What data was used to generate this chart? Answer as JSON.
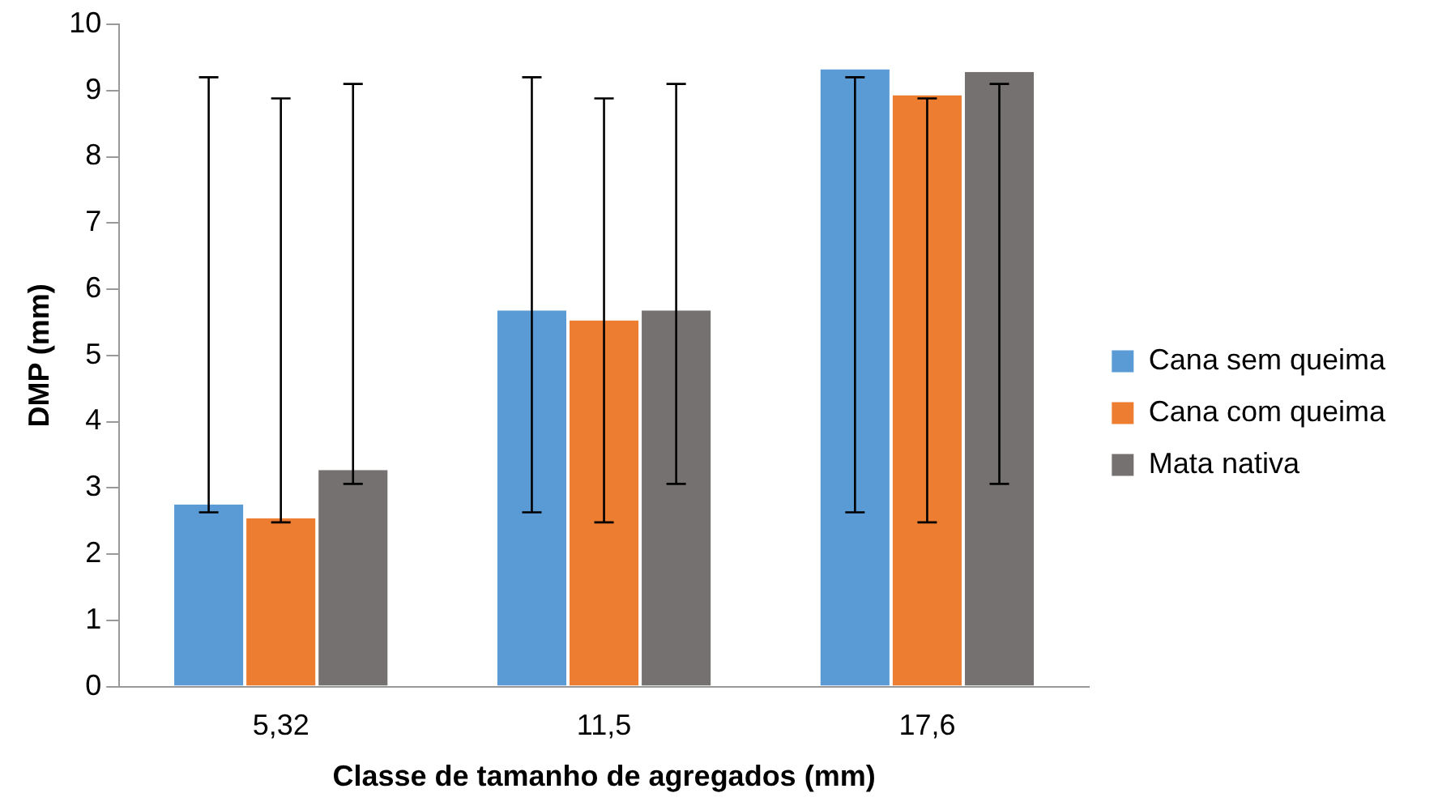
{
  "chart_data": {
    "type": "bar",
    "xlabel": "Classe de tamanho de agregados (mm)",
    "ylabel": "DMP (mm)",
    "categories": [
      "5,32",
      "11,5",
      "17,6"
    ],
    "series": [
      {
        "name": "Cana sem queima",
        "color": "#5b9bd5",
        "values": [
          2.75,
          5.68,
          9.32
        ],
        "errors": [
          [
            2.63,
            9.2
          ],
          [
            2.63,
            9.2
          ],
          [
            2.63,
            9.2
          ]
        ]
      },
      {
        "name": "Cana com queima",
        "color": "#ed7d31",
        "values": [
          2.54,
          5.53,
          8.93
        ],
        "errors": [
          [
            2.48,
            8.88
          ],
          [
            2.48,
            8.88
          ],
          [
            2.48,
            8.88
          ]
        ]
      },
      {
        "name": "Mata nativa",
        "color": "#767171",
        "values": [
          3.27,
          5.68,
          9.28
        ],
        "errors": [
          [
            3.06,
            9.1
          ],
          [
            3.06,
            9.1
          ],
          [
            3.06,
            9.1
          ]
        ]
      }
    ],
    "ylim": [
      0,
      10
    ],
    "yticks": [
      0,
      1,
      2,
      3,
      4,
      5,
      6,
      7,
      8,
      9,
      10
    ],
    "grid": false,
    "legend": "right"
  }
}
